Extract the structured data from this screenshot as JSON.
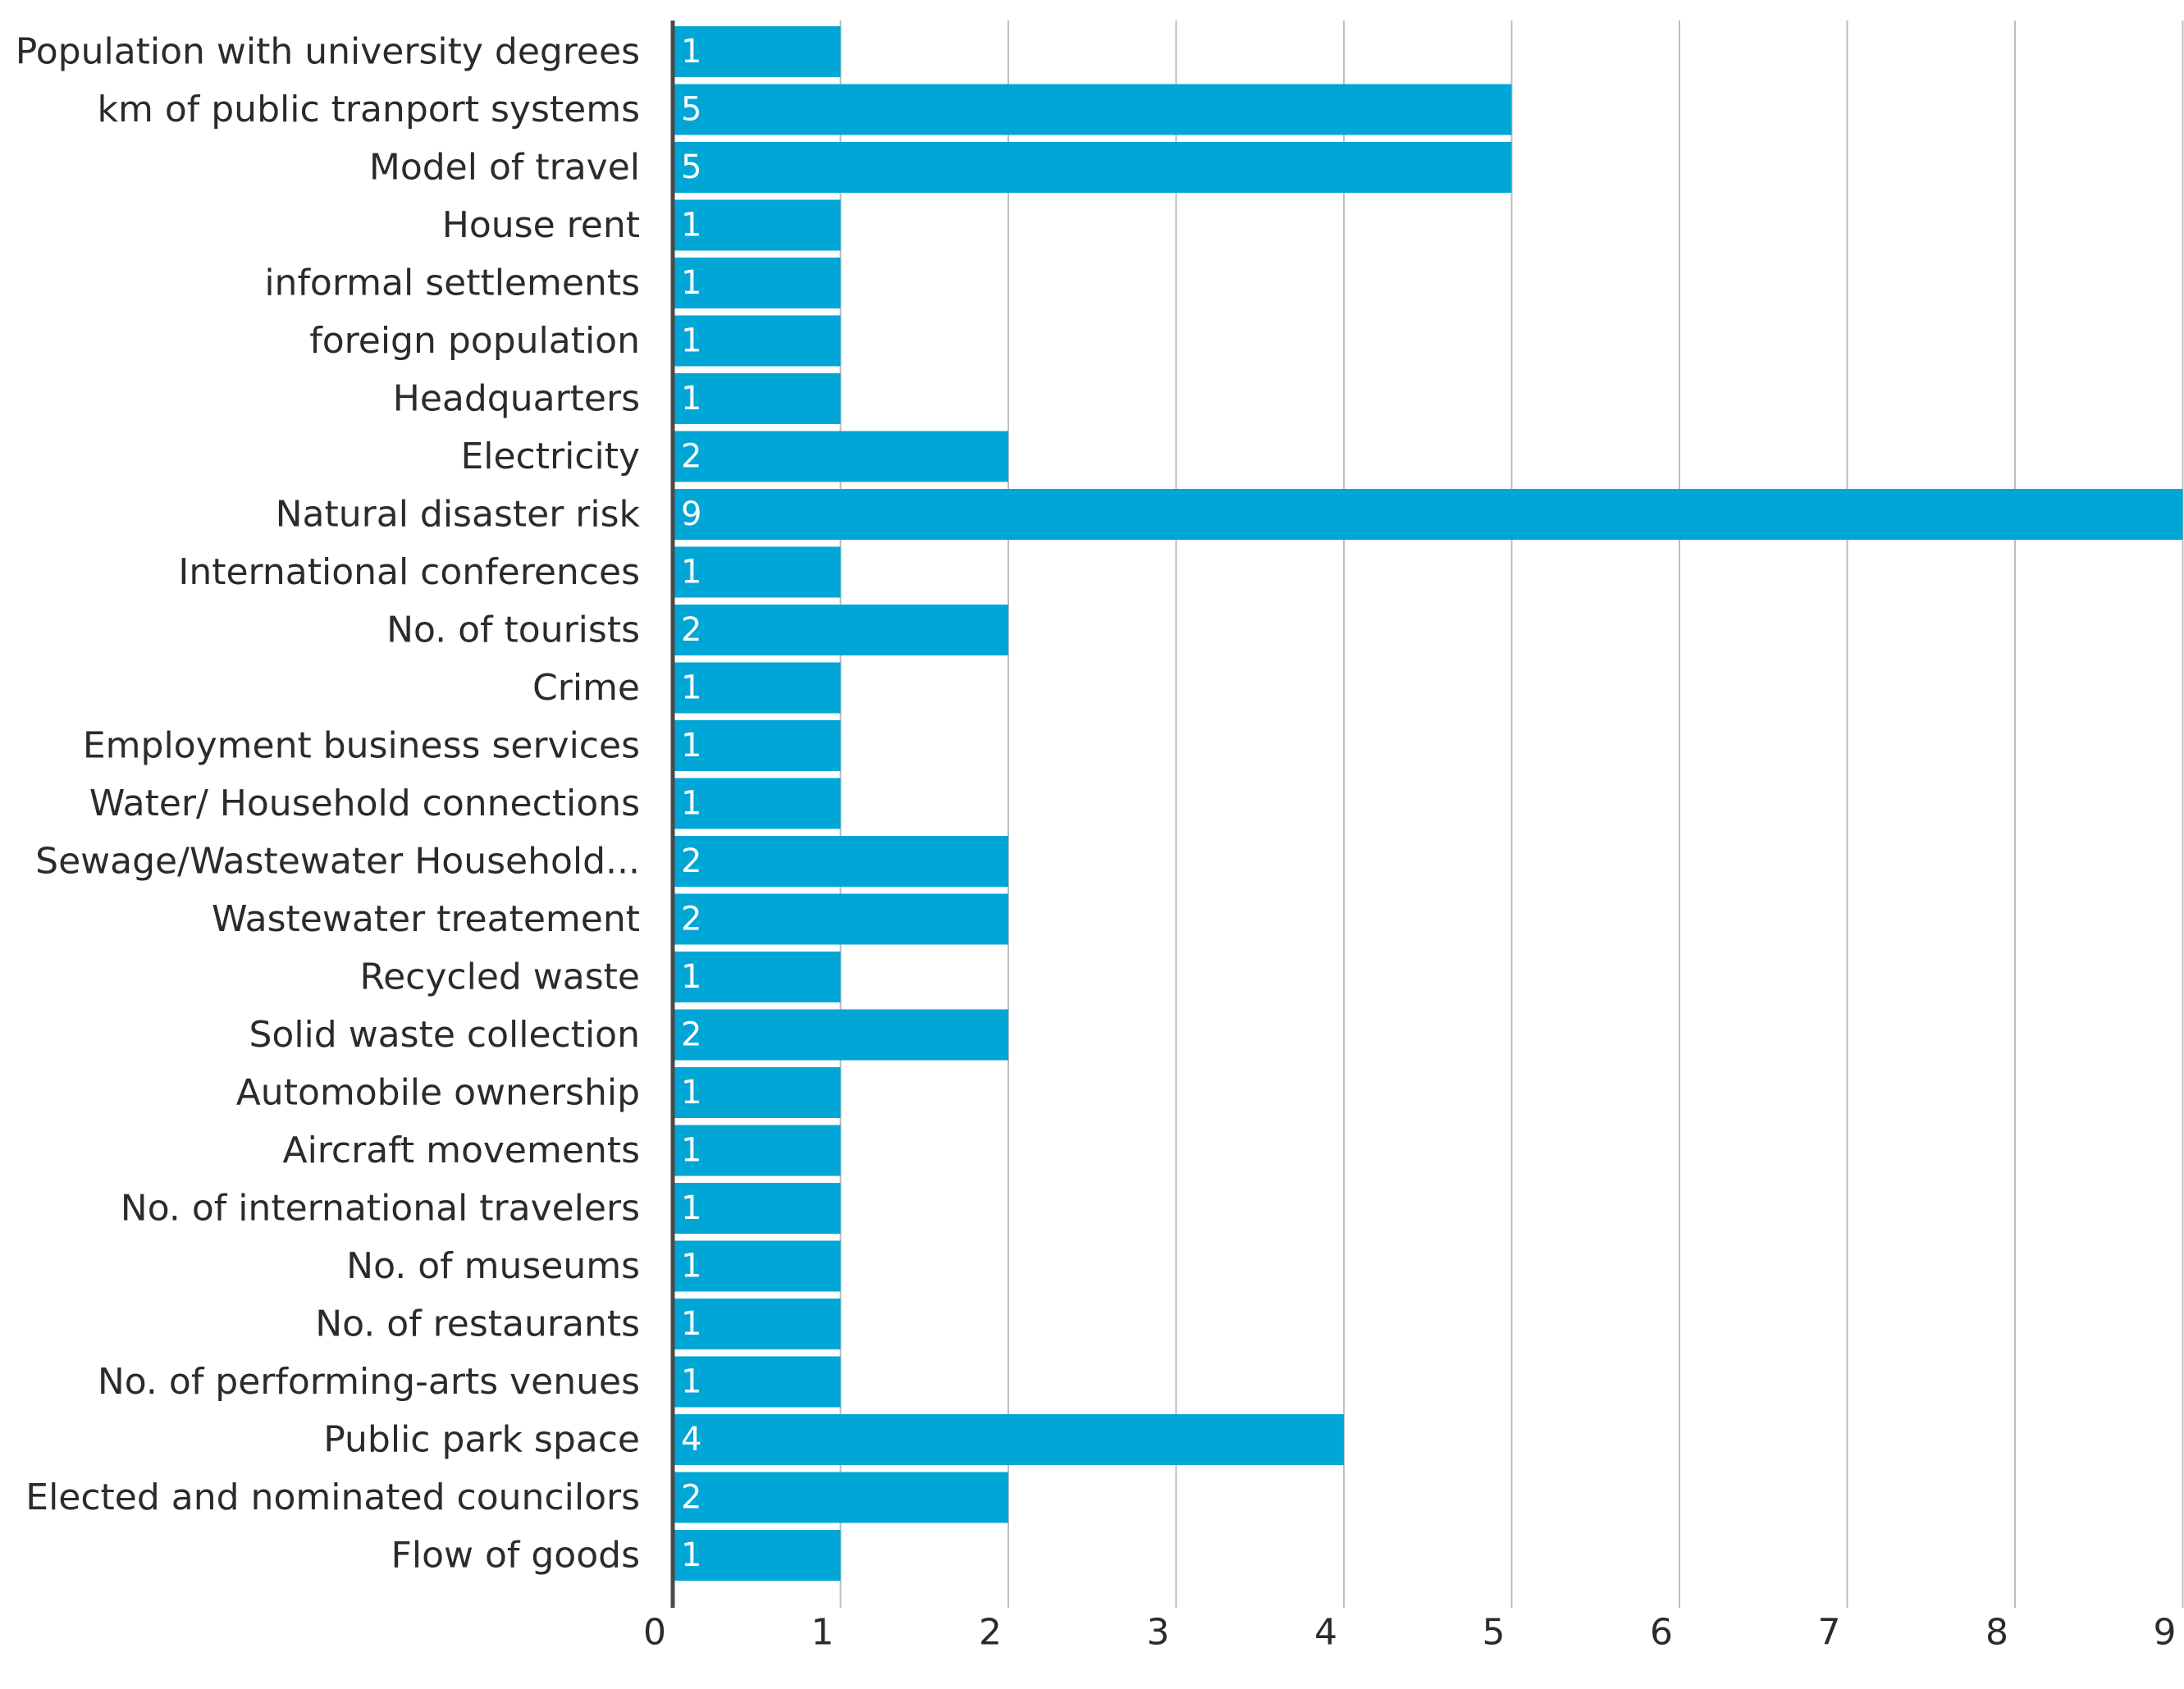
{
  "chart_data": {
    "type": "bar",
    "orientation": "horizontal",
    "title": "",
    "xlabel": "",
    "ylabel": "",
    "xlim": [
      0,
      9
    ],
    "ticks": [
      "0",
      "1",
      "2",
      "3",
      "4",
      "5",
      "6",
      "7",
      "8",
      "9"
    ],
    "grid": true,
    "bar_color": "#00a6d6",
    "grid_color": "#bdbdbd",
    "axis_color": "#4a4a4a",
    "categories": [
      "Population with university degrees",
      "km of public tranport systems",
      "Model of travel",
      "House rent",
      "informal settlements",
      "foreign population",
      "Headquarters",
      "Electricity",
      "Natural disaster risk",
      "International conferences",
      "No. of tourists",
      "Crime",
      "Employment business services",
      "Water/ Household connections",
      "Sewage/Wastewater Household...",
      "Wastewater treatement",
      "Recycled waste",
      "Solid waste collection",
      "Automobile ownership",
      "Aircraft movements",
      "No. of international travelers",
      "No. of museums",
      "No. of restaurants",
      "No. of performing-arts venues",
      "Public park space",
      "Elected and nominated councilors",
      "Flow of goods"
    ],
    "values": [
      1,
      5,
      5,
      1,
      1,
      1,
      1,
      2,
      9,
      1,
      2,
      1,
      1,
      1,
      2,
      2,
      1,
      2,
      1,
      1,
      1,
      1,
      1,
      1,
      4,
      2,
      1
    ]
  }
}
